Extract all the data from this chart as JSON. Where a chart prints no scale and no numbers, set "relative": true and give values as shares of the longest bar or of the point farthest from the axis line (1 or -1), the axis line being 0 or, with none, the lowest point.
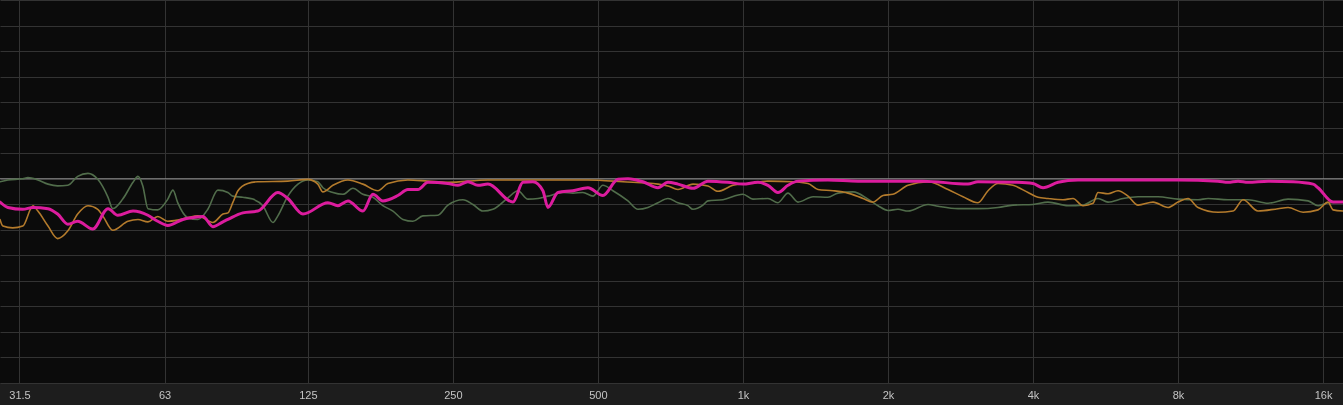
{
  "chart_data": {
    "type": "line",
    "relative": true,
    "log": "x",
    "grid": true,
    "tick_labels": "x",
    "line_style": "solid",
    "xlim": [
      28.7,
      17600
    ],
    "xticks": [
      31.5,
      63,
      125,
      250,
      500,
      {
        "value": 1000,
        "label": "1k"
      },
      {
        "value": 2000,
        "label": "2k"
      },
      {
        "value": 4000,
        "label": "4k"
      },
      {
        "value": 8000,
        "label": "8k"
      },
      {
        "value": 16000,
        "label": "16k"
      }
    ],
    "ref_lines": [
      {
        "axis": "y",
        "value": 0,
        "color": "#8a8a8a"
      }
    ],
    "series": [
      {
        "color": "#516d4b",
        "x": [
          28.7,
          29.8,
          32.0,
          32.8,
          34.4,
          36.1,
          37.8,
          39.7,
          41.6,
          43.7,
          45.8,
          48.1,
          49.2,
          51.6,
          54.2,
          55.5,
          56.8,
          58.2,
          61.0,
          64.0,
          65.6,
          67.1,
          70.4,
          73.9,
          77.5,
          81.3,
          85.3,
          87.3,
          91.6,
          96.1,
          100.8,
          105.8,
          108.3,
          113.6,
          119.2,
          125,
          131.1,
          134.3,
          140.9,
          147.8,
          155.0,
          162.6,
          170.6,
          178.9,
          187.7,
          196.9,
          206.5,
          216.6,
          232.7,
          244.1,
          262.3,
          275.1,
          288.6,
          302.7,
          325.2,
          341.1,
          357.8,
          375.4,
          393.7,
          423.0,
          443.7,
          465.4,
          488.2,
          512.1,
          537.2,
          577.2,
          605.4,
          635.1,
          666.2,
          698.8,
          733.0,
          768.9,
          787.5,
          826.0,
          846.0,
          908.9,
          1000,
          1049,
          1127,
          1182,
          1240,
          1301,
          1398,
          1501,
          1575,
          1692,
          1818,
          1907,
          2000,
          2098,
          2201,
          2422,
          2540,
          2795,
          3075,
          3384,
          3635,
          4000,
          4297,
          4728,
          5080,
          5458,
          5725,
          6151,
          6608,
          7271,
          8000,
          8803,
          9234,
          10161,
          11180,
          12302,
          13536,
          14894,
          15622,
          16387,
          17600
        ],
        "values": [
          -0.05,
          -0.02,
          0.0,
          0.02,
          -0.02,
          -0.09,
          -0.12,
          -0.11,
          0.04,
          0.09,
          -0.01,
          -0.31,
          -0.5,
          -0.34,
          -0.06,
          0.04,
          -0.12,
          -0.5,
          -0.52,
          -0.34,
          -0.19,
          -0.4,
          -0.65,
          -0.68,
          -0.51,
          -0.19,
          -0.23,
          -0.29,
          -0.31,
          -0.34,
          -0.45,
          -0.73,
          -0.62,
          -0.29,
          -0.09,
          -0.02,
          -0.05,
          -0.15,
          -0.23,
          -0.26,
          -0.16,
          -0.26,
          -0.31,
          -0.45,
          -0.54,
          -0.68,
          -0.71,
          -0.62,
          -0.61,
          -0.44,
          -0.35,
          -0.43,
          -0.54,
          -0.51,
          -0.32,
          -0.2,
          -0.34,
          -0.33,
          -0.29,
          -0.23,
          -0.24,
          -0.23,
          -0.29,
          -0.11,
          -0.2,
          -0.37,
          -0.51,
          -0.48,
          -0.4,
          -0.33,
          -0.4,
          -0.45,
          -0.51,
          -0.44,
          -0.37,
          -0.35,
          -0.26,
          -0.34,
          -0.33,
          -0.4,
          -0.24,
          -0.39,
          -0.3,
          -0.31,
          -0.24,
          -0.22,
          -0.34,
          -0.45,
          -0.53,
          -0.51,
          -0.54,
          -0.43,
          -0.46,
          -0.5,
          -0.5,
          -0.48,
          -0.44,
          -0.43,
          -0.39,
          -0.45,
          -0.44,
          -0.33,
          -0.39,
          -0.33,
          -0.3,
          -0.3,
          -0.34,
          -0.35,
          -0.33,
          -0.35,
          -0.35,
          -0.41,
          -0.34,
          -0.37,
          -0.45,
          -0.4,
          -0.39
        ]
      },
      {
        "color": "#b47b2c",
        "x": [
          28.7,
          29.1,
          30.5,
          32.0,
          33.6,
          34.4,
          36.1,
          37.8,
          39.7,
          41.6,
          43.7,
          45.8,
          46.9,
          49.2,
          52.9,
          55.5,
          58.2,
          61.0,
          64.0,
          67.1,
          70.4,
          73.9,
          79.4,
          83.3,
          85.3,
          87.3,
          89.5,
          93.8,
          98.4,
          113.6,
          125,
          131.1,
          134.3,
          140.9,
          151.4,
          162.6,
          174.7,
          183.2,
          201.6,
          221.9,
          244.1,
          295.5,
          375.4,
          476.7,
          563.5,
          666.2,
          698.8,
          733.0,
          787.5,
          846.0,
          887.4,
          953.3,
          1024,
          1127,
          1270,
          1365,
          1431,
          1538,
          1652,
          1775,
          1862,
          1953,
          2048,
          2201,
          2422,
          2665,
          2863,
          3075,
          3226,
          3384,
          3635,
          3906,
          4097,
          4297,
          4617,
          4843,
          5080,
          5329,
          5458,
          5725,
          6006,
          6300,
          6608,
          7099,
          7627,
          8000,
          8392,
          8803,
          9686,
          10406,
          10916,
          11727,
          12904,
          13536,
          14542,
          15622,
          16387,
          16784,
          17600
        ],
        "values": [
          -0.68,
          -0.79,
          -0.82,
          -0.79,
          -0.45,
          -0.54,
          -0.79,
          -1.0,
          -0.87,
          -0.59,
          -0.45,
          -0.51,
          -0.62,
          -0.86,
          -0.71,
          -0.68,
          -0.72,
          -0.63,
          -0.71,
          -0.69,
          -0.65,
          -0.62,
          -0.73,
          -0.59,
          -0.57,
          -0.4,
          -0.2,
          -0.08,
          -0.05,
          -0.04,
          -0.01,
          -0.09,
          -0.22,
          -0.11,
          -0.02,
          -0.09,
          -0.2,
          -0.08,
          -0.02,
          -0.04,
          -0.06,
          -0.02,
          -0.02,
          -0.02,
          -0.05,
          -0.09,
          -0.12,
          -0.18,
          -0.09,
          -0.12,
          -0.21,
          -0.11,
          -0.08,
          -0.04,
          -0.05,
          -0.08,
          -0.18,
          -0.2,
          -0.24,
          -0.33,
          -0.39,
          -0.28,
          -0.26,
          -0.11,
          -0.05,
          -0.18,
          -0.3,
          -0.4,
          -0.2,
          -0.08,
          -0.11,
          -0.23,
          -0.31,
          -0.33,
          -0.35,
          -0.33,
          -0.45,
          -0.41,
          -0.23,
          -0.25,
          -0.2,
          -0.29,
          -0.44,
          -0.39,
          -0.48,
          -0.39,
          -0.33,
          -0.48,
          -0.56,
          -0.54,
          -0.35,
          -0.54,
          -0.5,
          -0.48,
          -0.56,
          -0.52,
          -0.39,
          -0.52,
          -0.54
        ]
      },
      {
        "color": "#dc1c9e",
        "x": [
          28.7,
          29.8,
          32.0,
          33.6,
          36.1,
          37.8,
          39.7,
          41.6,
          44.7,
          48.1,
          50.4,
          54.2,
          58.2,
          61.0,
          64.0,
          68.8,
          72.1,
          75.7,
          79.4,
          83.3,
          85.3,
          91.6,
          98.4,
          108.3,
          113.6,
          122.1,
          137.6,
          144.3,
          151.4,
          162.6,
          170.6,
          178.9,
          192.2,
          201.6,
          211.5,
          221.9,
          244.1,
          256.1,
          268.6,
          281.8,
          295.5,
          333.1,
          349.4,
          366.5,
          384.4,
          393.7,
          413.0,
          443.7,
          476.7,
          512.1,
          550.2,
          577.2,
          620.0,
          666.2,
          698.8,
          733.0,
          787.5,
          846.0,
          930.9,
          1000,
          1074,
          1127,
          1182,
          1240,
          1301,
          1501,
          1733,
          2000,
          2364,
          2932,
          3075,
          3723,
          4000,
          4196,
          4508,
          4960,
          5725,
          8000,
          9686,
          10161,
          10658,
          11180,
          12302,
          13865,
          15254,
          15622,
          16784,
          17600
        ],
        "values": [
          -0.39,
          -0.48,
          -0.51,
          -0.48,
          -0.5,
          -0.59,
          -0.76,
          -0.71,
          -0.84,
          -0.5,
          -0.61,
          -0.54,
          -0.61,
          -0.71,
          -0.78,
          -0.68,
          -0.65,
          -0.63,
          -0.8,
          -0.72,
          -0.68,
          -0.57,
          -0.54,
          -0.23,
          -0.33,
          -0.59,
          -0.4,
          -0.45,
          -0.37,
          -0.54,
          -0.26,
          -0.37,
          -0.28,
          -0.18,
          -0.18,
          -0.06,
          -0.08,
          -0.11,
          -0.05,
          -0.11,
          -0.09,
          -0.39,
          -0.06,
          -0.05,
          -0.2,
          -0.48,
          -0.23,
          -0.2,
          -0.15,
          -0.28,
          -0.01,
          0.0,
          -0.05,
          -0.15,
          -0.06,
          -0.09,
          -0.16,
          -0.04,
          -0.06,
          -0.09,
          -0.06,
          -0.11,
          -0.23,
          -0.11,
          -0.04,
          -0.02,
          -0.04,
          -0.04,
          -0.04,
          -0.09,
          -0.05,
          -0.06,
          -0.08,
          -0.15,
          -0.06,
          -0.02,
          -0.02,
          -0.02,
          -0.04,
          -0.06,
          -0.04,
          -0.06,
          -0.04,
          -0.05,
          -0.09,
          -0.15,
          -0.39,
          -0.39
        ]
      }
    ]
  }
}
